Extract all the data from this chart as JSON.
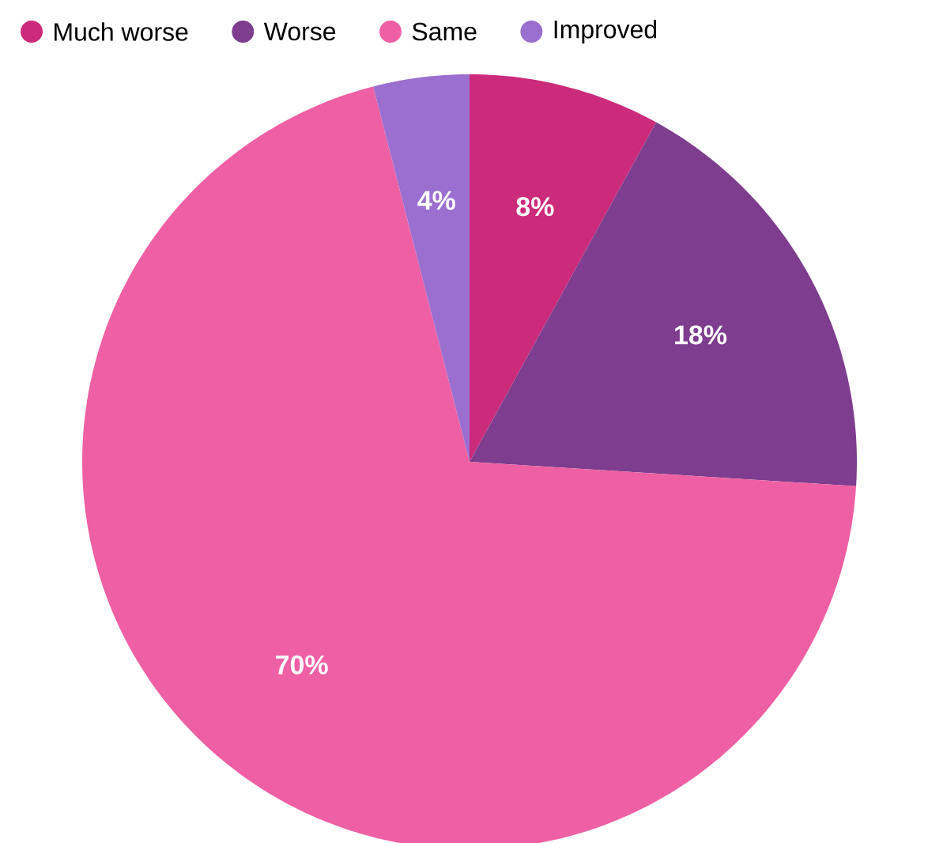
{
  "chart_data": {
    "type": "pie",
    "categories": [
      "Much worse",
      "Worse",
      "Same",
      "Improved"
    ],
    "values": [
      8,
      18,
      70,
      4
    ],
    "colors": [
      "#cc2a7a",
      "#7e3d8f",
      "#ef5fa4",
      "#9b6fcf"
    ],
    "value_labels": [
      "8%",
      "18%",
      "70%",
      "4%"
    ],
    "legend": "top"
  }
}
